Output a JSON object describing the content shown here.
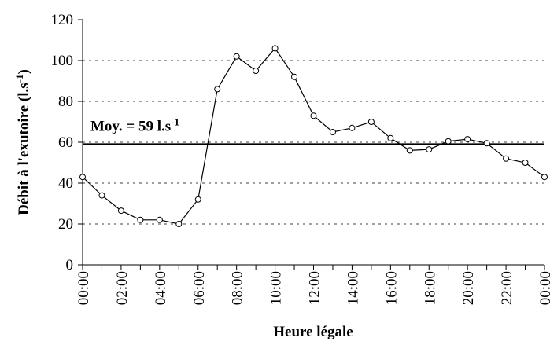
{
  "chart_data": {
    "type": "line",
    "x_label": "Heure légale",
    "y_label": {
      "prefix": "Débit à l'exutoire (l.s",
      "sup": "-1",
      "suffix": ")"
    },
    "categories": [
      "00:00",
      null,
      "02:00",
      null,
      "04:00",
      null,
      "06:00",
      null,
      "08:00",
      null,
      "10:00",
      null,
      "12:00",
      null,
      "14:00",
      null,
      "16:00",
      null,
      "18:00",
      null,
      "20:00",
      null,
      "22:00",
      null,
      "00:00"
    ],
    "series": [
      {
        "name": "Débit",
        "color": "#000000",
        "values": [
          43,
          34,
          26.5,
          22,
          22,
          20,
          32,
          86,
          102,
          95,
          106,
          92,
          73,
          65,
          67,
          70,
          62,
          56,
          56.5,
          60.5,
          61.5,
          59.5,
          52,
          50,
          43
        ]
      }
    ],
    "mean": {
      "value": 59,
      "label": "Moy. = 59 l.s",
      "sup": "-1",
      "color": "#000000"
    },
    "ylim": [
      0,
      120
    ],
    "yticks": [
      0,
      20,
      40,
      60,
      80,
      100,
      120
    ],
    "grid": true
  }
}
